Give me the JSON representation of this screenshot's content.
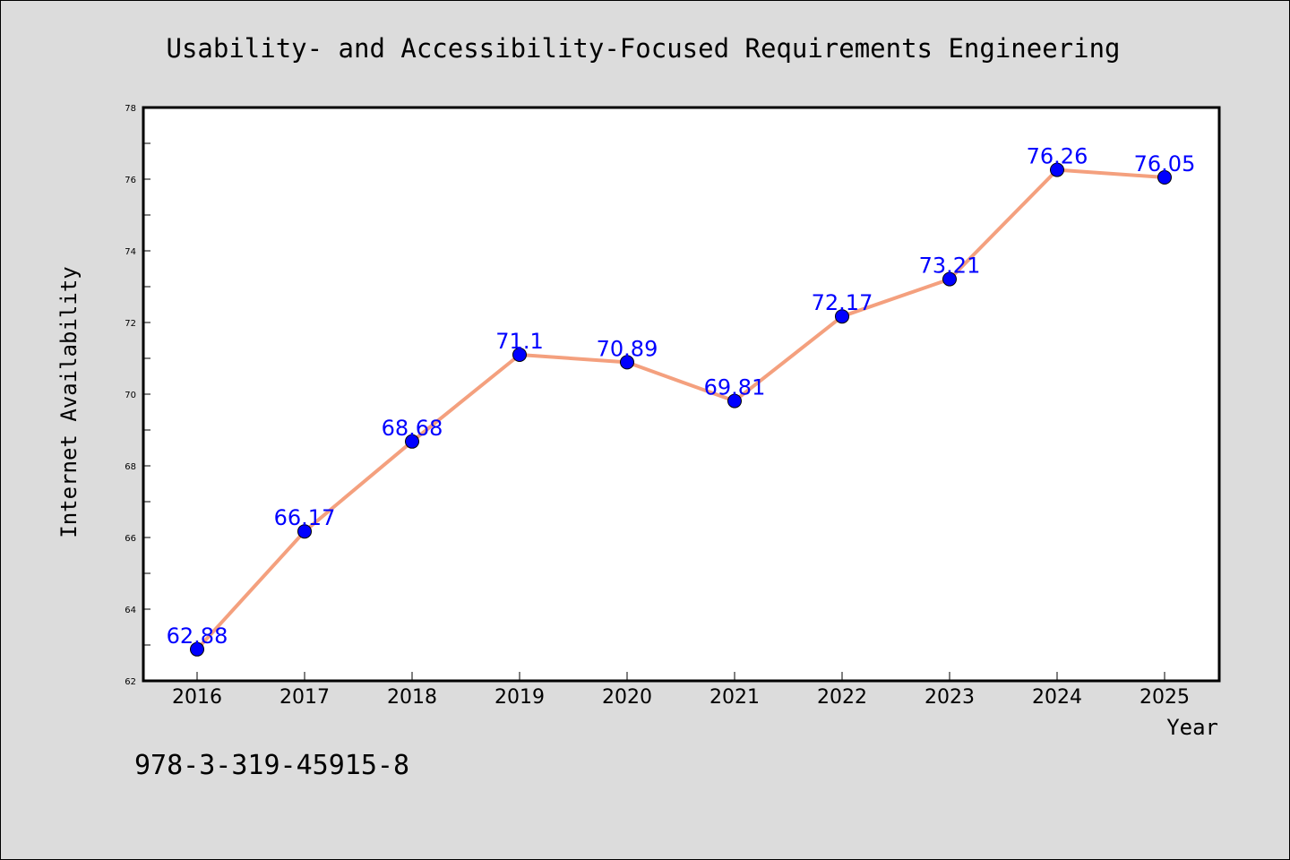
{
  "chart_data": {
    "type": "line",
    "title": "Usability- and Accessibility-Focused Requirements Engineering",
    "xlabel": "Year",
    "ylabel": "Internet Availability",
    "categories": [
      "2016",
      "2017",
      "2018",
      "2019",
      "2020",
      "2021",
      "2022",
      "2023",
      "2024",
      "2025"
    ],
    "series": [
      {
        "values": [
          62.88,
          66.17,
          68.68,
          71.1,
          70.89,
          69.81,
          72.17,
          73.21,
          76.26,
          76.05
        ],
        "data_labels": [
          "62.88",
          "66.17",
          "68.68",
          "71.1",
          "70.89",
          "69.81",
          "72.17",
          "73.21",
          "76.26",
          "76.05"
        ]
      }
    ],
    "ylim": [
      62,
      78
    ],
    "yticks": [
      62,
      64,
      66,
      68,
      70,
      72,
      74,
      76,
      78
    ],
    "grid": false,
    "legend": "none",
    "line_color": "#f4a07e",
    "marker_color": "#0000ff",
    "label_color": "#0000ff"
  },
  "footer": {
    "isbn": "978-3-319-45915-8"
  },
  "colors": {
    "background": "#dcdcdc",
    "plot_background": "#ffffff"
  }
}
